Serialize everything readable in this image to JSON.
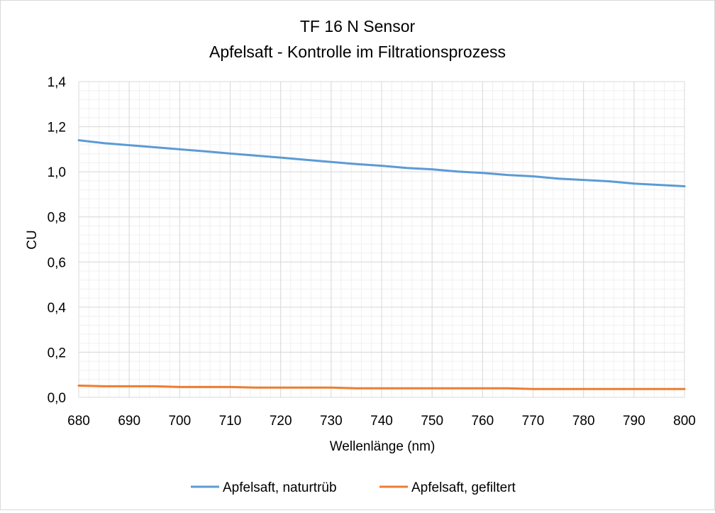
{
  "chart_data": {
    "type": "line",
    "title": "TF 16 N Sensor",
    "subtitle": "Apfelsaft - Kontrolle im Filtrationsprozess",
    "xlabel": "Wellenlänge (nm)",
    "ylabel": "CU",
    "xlim": [
      680,
      800
    ],
    "ylim": [
      0,
      1.4
    ],
    "x_ticks": [
      "680",
      "690",
      "700",
      "710",
      "720",
      "730",
      "740",
      "750",
      "760",
      "770",
      "780",
      "790",
      "800"
    ],
    "y_ticks": [
      "0,0",
      "0,2",
      "0,4",
      "0,6",
      "0,8",
      "1,0",
      "1,2",
      "1,4"
    ],
    "grid": true,
    "legend_position": "bottom",
    "x": [
      680,
      685,
      690,
      695,
      700,
      705,
      710,
      715,
      720,
      725,
      730,
      735,
      740,
      745,
      750,
      755,
      760,
      765,
      770,
      775,
      780,
      785,
      790,
      795,
      800
    ],
    "series": [
      {
        "name": "Apfelsaft, naturtrüb",
        "color": "#5b9bd5",
        "values": [
          1.14,
          1.127,
          1.118,
          1.109,
          1.1,
          1.091,
          1.081,
          1.072,
          1.063,
          1.053,
          1.044,
          1.034,
          1.027,
          1.017,
          1.011,
          1.001,
          0.995,
          0.986,
          0.98,
          0.97,
          0.964,
          0.958,
          0.948,
          0.942,
          0.936
        ]
      },
      {
        "name": "Apfelsaft, gefiltert",
        "color": "#ed7d31",
        "values": [
          0.052,
          0.049,
          0.049,
          0.049,
          0.046,
          0.046,
          0.046,
          0.043,
          0.043,
          0.043,
          0.043,
          0.04,
          0.04,
          0.04,
          0.04,
          0.04,
          0.04,
          0.04,
          0.037,
          0.037,
          0.037,
          0.037,
          0.037,
          0.037,
          0.037
        ]
      }
    ]
  }
}
